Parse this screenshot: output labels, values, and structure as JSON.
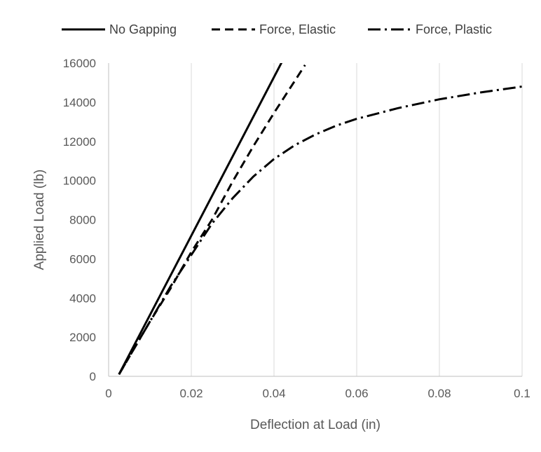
{
  "chart_data": {
    "type": "line",
    "title": "",
    "xlabel": "Deflection at Load (in)",
    "ylabel": "Applied Load (lb)",
    "xlim": [
      0,
      0.1
    ],
    "ylim": [
      0,
      16000
    ],
    "x_ticks": [
      0,
      0.02,
      0.04,
      0.06,
      0.08,
      0.1
    ],
    "x_tick_labels": [
      "0",
      "0.02",
      "0.04",
      "0.06",
      "0.08",
      "0.1"
    ],
    "y_ticks": [
      0,
      2000,
      4000,
      6000,
      8000,
      10000,
      12000,
      14000,
      16000
    ],
    "y_tick_labels": [
      "0",
      "2000",
      "4000",
      "6000",
      "8000",
      "10000",
      "12000",
      "14000",
      "16000"
    ],
    "grid": "vertical",
    "legend_position": "top",
    "series": [
      {
        "name": "No Gapping",
        "dash": "solid",
        "color": "#000000",
        "points": [
          [
            0.0025,
            100
          ],
          [
            0.0425,
            16300
          ]
        ]
      },
      {
        "name": "Force, Elastic",
        "dash": "dashed",
        "color": "#000000",
        "points": [
          [
            0.0025,
            100
          ],
          [
            0.01,
            2800
          ],
          [
            0.015,
            4500
          ],
          [
            0.02,
            6350
          ],
          [
            0.025,
            8000
          ],
          [
            0.03,
            9950
          ],
          [
            0.035,
            11750
          ],
          [
            0.04,
            13450
          ],
          [
            0.0475,
            15900
          ]
        ]
      },
      {
        "name": "Force, Plastic",
        "dash": "dashdot",
        "color": "#000000",
        "points": [
          [
            0.0025,
            100
          ],
          [
            0.01,
            2800
          ],
          [
            0.015,
            4600
          ],
          [
            0.02,
            6200
          ],
          [
            0.025,
            7800
          ],
          [
            0.03,
            9100
          ],
          [
            0.035,
            10200
          ],
          [
            0.04,
            11100
          ],
          [
            0.045,
            11800
          ],
          [
            0.05,
            12350
          ],
          [
            0.055,
            12800
          ],
          [
            0.06,
            13150
          ],
          [
            0.07,
            13700
          ],
          [
            0.08,
            14150
          ],
          [
            0.09,
            14500
          ],
          [
            0.1,
            14800
          ]
        ]
      }
    ]
  }
}
